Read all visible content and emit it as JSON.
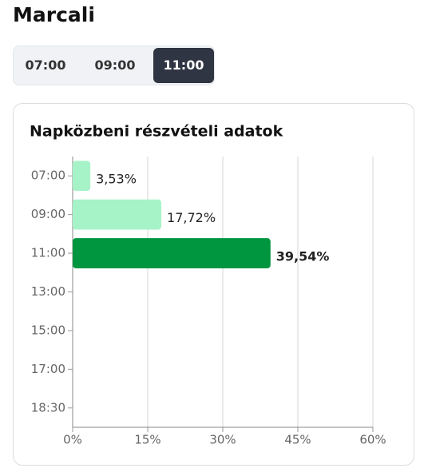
{
  "header": {
    "title": "Marcali"
  },
  "tabs": {
    "items": [
      "07:00",
      "09:00",
      "11:00"
    ],
    "selected": 2
  },
  "chart_data": {
    "type": "bar",
    "orientation": "horizontal",
    "title": "Napközbeni részvételi adatok",
    "categories": [
      "07:00",
      "09:00",
      "11:00",
      "13:00",
      "15:00",
      "17:00",
      "18:30"
    ],
    "values": [
      3.53,
      17.72,
      39.54,
      null,
      null,
      null,
      null
    ],
    "value_labels": [
      "3,53%",
      "17,72%",
      "39,54%",
      null,
      null,
      null,
      null
    ],
    "color": "#a7f3c8",
    "highlight_color": "#009640",
    "xlim": [
      0,
      60
    ],
    "xticks": [
      {
        "value": 0,
        "label": "0%"
      },
      {
        "value": 15,
        "label": "15%"
      },
      {
        "value": 30,
        "label": "30%"
      },
      {
        "value": 45,
        "label": "45%"
      },
      {
        "value": 60,
        "label": "60%"
      }
    ],
    "grid": true
  }
}
